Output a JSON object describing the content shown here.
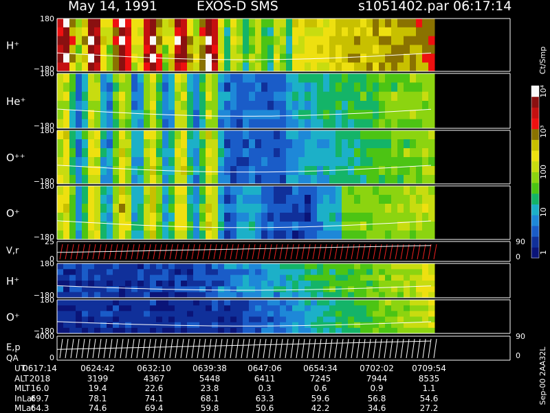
{
  "header": {
    "date": "May 14, 1991",
    "instrument": "EXOS-D SMS",
    "file": "s1051402.par",
    "time": "06:17:14"
  },
  "colorbar": {
    "unit": "Ct/Smp",
    "labels": [
      "1",
      "10",
      "100",
      "10³",
      "10⁴"
    ]
  },
  "side_label": "Sep-00 2AA32L",
  "chart_data": {
    "type": "heatmap",
    "panels": [
      {
        "label": "H⁺",
        "ymax": "180",
        "ymin": "−180",
        "shape": "beam"
      },
      {
        "label": "He⁺",
        "ymax": "180",
        "ymin": "−180",
        "shape": "beam"
      },
      {
        "label": "O⁺⁺",
        "ymax": "180",
        "ymin": "−180",
        "shape": "beam"
      },
      {
        "label": "O⁺",
        "ymax": "180",
        "ymin": "−180",
        "shape": "beam"
      },
      {
        "label": "V,r",
        "ymax": "25",
        "ymin": "0",
        "right_top": "90",
        "right_bottom": "0",
        "shape": "line"
      },
      {
        "label": "H⁺",
        "ymax": "180",
        "ymin": "−180",
        "shape": "low"
      },
      {
        "label": "O⁺",
        "ymax": "180",
        "ymin": "−180",
        "shape": "low"
      },
      {
        "label": "E,p",
        "ymax": "4000",
        "ymin": "0",
        "sublabel": "QA",
        "right_top": "90",
        "right_bottom": "0",
        "shape": "line2"
      }
    ]
  },
  "ephemeris": {
    "rows": [
      {
        "label": "UT",
        "values": [
          "0617:14",
          "0624:42",
          "0632:10",
          "0639:38",
          "0647:06",
          "0654:34",
          "0702:02",
          "0709:54"
        ]
      },
      {
        "label": "ALT",
        "values": [
          "2018",
          "3199",
          "4367",
          "5448",
          "6411",
          "7245",
          "7944",
          "8535"
        ]
      },
      {
        "label": "MLT",
        "values": [
          "16.0",
          "19.4",
          "22.6",
          "23.8",
          "0.3",
          "0.6",
          "0.9",
          "1.1"
        ]
      },
      {
        "label": "InLat",
        "values": [
          "69.7",
          "78.1",
          "74.1",
          "68.1",
          "63.3",
          "59.6",
          "56.8",
          "54.6"
        ]
      },
      {
        "label": "MLat",
        "values": [
          "64.3",
          "74.6",
          "69.4",
          "59.8",
          "50.6",
          "42.2",
          "34.6",
          "27.2"
        ]
      }
    ]
  }
}
